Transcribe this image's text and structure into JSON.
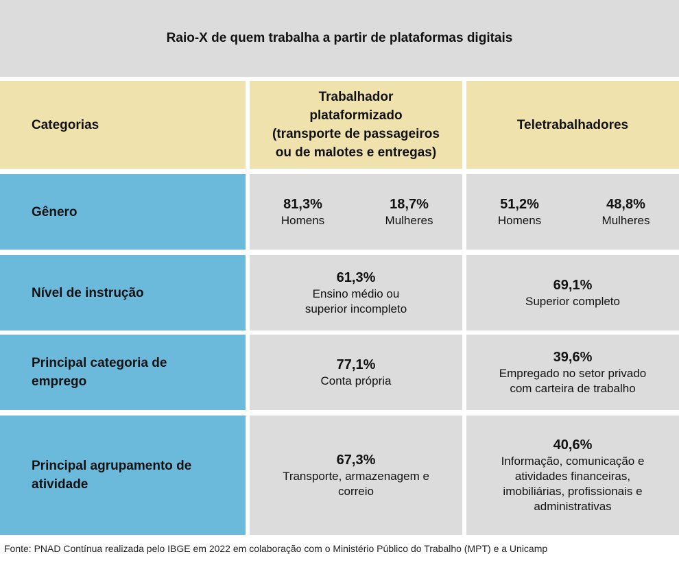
{
  "title": "Raio-X de quem trabalha a partir de plataformas digitais",
  "header": {
    "categories": "Categorias",
    "col1_lines": [
      "Trabalhador",
      "plataformizado",
      "(transporte de passageiros",
      "ou de malotes e entregas)"
    ],
    "col2": "Teletrabalhadores"
  },
  "rows": [
    {
      "category": "Gênero",
      "col1": {
        "left": {
          "pct": "81,3%",
          "label": "Homens"
        },
        "right": {
          "pct": "18,7%",
          "label": "Mulheres"
        }
      },
      "col2": {
        "left": {
          "pct": "51,2%",
          "label": "Homens"
        },
        "right": {
          "pct": "48,8%",
          "label": "Mulheres"
        }
      }
    },
    {
      "category": "Nível de instrução",
      "col1": {
        "pct": "61,3%",
        "lines": [
          "Ensino médio ou",
          "superior incompleto"
        ]
      },
      "col2": {
        "pct": "69,1%",
        "lines": [
          "Superior completo"
        ]
      }
    },
    {
      "category_lines": [
        "Principal categoria de",
        "emprego"
      ],
      "col1": {
        "pct": "77,1%",
        "lines": [
          "Conta própria"
        ]
      },
      "col2": {
        "pct": "39,6%",
        "lines": [
          "Empregado no setor privado",
          "com carteira de trabalho"
        ]
      }
    },
    {
      "category_lines": [
        "Principal agrupamento de",
        "atividade"
      ],
      "col1": {
        "pct": "67,3%",
        "lines": [
          "Transporte, armazenagem e",
          "correio"
        ]
      },
      "col2": {
        "pct": "40,6%",
        "lines": [
          "Informação, comunicação e",
          "atividades financeiras,",
          "imobiliárias, profissionais e",
          "administrativas"
        ]
      }
    }
  ],
  "footer": "Fonte: PNAD Contínua realizada pelo IBGE em 2022 em colaboração com o Ministério Público do Trabalho (MPT) e a Unicamp",
  "colors": {
    "header_bg": "#f0e2ad",
    "category_bg": "#6bbadc",
    "cell_bg": "#dcdcdc"
  }
}
